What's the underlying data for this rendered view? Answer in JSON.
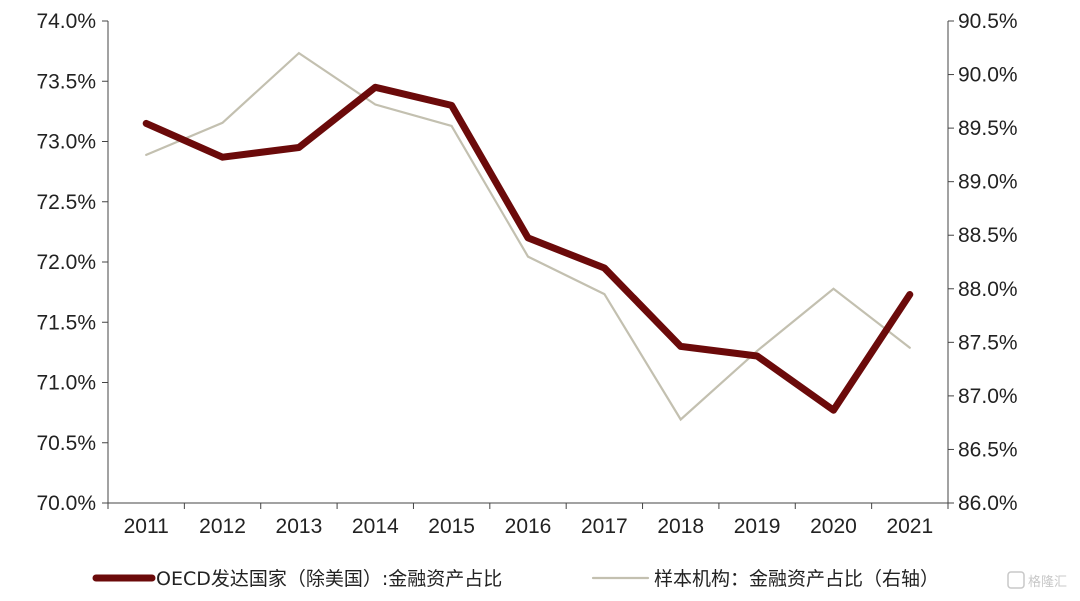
{
  "chart_data": {
    "type": "line",
    "categories": [
      "2011",
      "2012",
      "2013",
      "2014",
      "2015",
      "2016",
      "2017",
      "2018",
      "2019",
      "2020",
      "2021"
    ],
    "left_axis": {
      "ylim": [
        70.0,
        74.0
      ],
      "ticks": [
        "70.0%",
        "70.5%",
        "71.0%",
        "71.5%",
        "72.0%",
        "72.5%",
        "73.0%",
        "73.5%",
        "74.0%"
      ],
      "tick_values": [
        70.0,
        70.5,
        71.0,
        71.5,
        72.0,
        72.5,
        73.0,
        73.5,
        74.0
      ]
    },
    "right_axis": {
      "ylim": [
        86.0,
        90.5
      ],
      "ticks": [
        "86.0%",
        "86.5%",
        "87.0%",
        "87.5%",
        "88.0%",
        "88.5%",
        "89.0%",
        "89.5%",
        "90.0%",
        "90.5%"
      ],
      "tick_values": [
        86.0,
        86.5,
        87.0,
        87.5,
        88.0,
        88.5,
        89.0,
        89.5,
        90.0,
        90.5
      ]
    },
    "series": [
      {
        "name": "OECD发达国家（除美国）:金融资产占比",
        "axis": "left",
        "color": "#6b0a0a",
        "values": [
          73.15,
          72.87,
          72.95,
          73.45,
          73.3,
          72.2,
          71.95,
          71.3,
          71.22,
          70.77,
          71.73
        ]
      },
      {
        "name": "样本机构：金融资产占比（右轴）",
        "axis": "right",
        "color": "#c3c0b0",
        "values": [
          89.25,
          89.55,
          90.2,
          89.72,
          89.52,
          88.3,
          87.95,
          86.78,
          87.42,
          88.0,
          87.45
        ]
      }
    ],
    "grid": false,
    "legend_position": "bottom"
  },
  "watermark": "格隆汇"
}
